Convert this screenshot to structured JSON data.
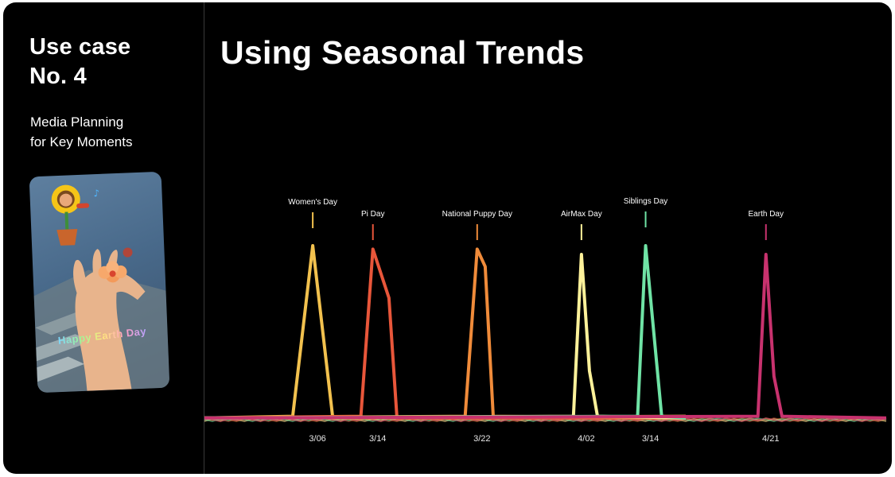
{
  "sidebar": {
    "heading_line1": "Use case",
    "heading_line2": "No. 4",
    "subtitle_line1": "Media Planning",
    "subtitle_line2": "for Key Moments",
    "phone_sticker_text": "Happy Earth Day"
  },
  "main": {
    "title": "Using Seasonal Trends"
  },
  "chart_data": {
    "type": "line",
    "x_tick_labels": [
      "3/06",
      "3/14",
      "3/22",
      "4/02",
      "3/14",
      "4/21"
    ],
    "ylim": [
      0,
      100
    ],
    "grid": false,
    "legend": "none",
    "annotations": [
      {
        "label": "Women's Day",
        "color": "#f2c14e"
      },
      {
        "label": "Pi Day",
        "color": "#e8563a"
      },
      {
        "label": "National Puppy Day",
        "color": "#f08b3a"
      },
      {
        "label": "AirMax Day",
        "color": "#fdf19a"
      },
      {
        "label": "Siblings Day",
        "color": "#6fe3a5"
      },
      {
        "label": "Earth Day",
        "color": "#c8326e"
      }
    ],
    "series": [
      {
        "color": "#f2c14e",
        "peak_x": 13.5,
        "values": [
          [
            0,
            1
          ],
          [
            11,
            2
          ],
          [
            13.5,
            100
          ],
          [
            16,
            1
          ],
          [
            60,
            2
          ]
        ]
      },
      {
        "color": "#e8563a",
        "peak_x": 21,
        "values": [
          [
            0,
            1
          ],
          [
            19.5,
            2
          ],
          [
            21,
            98
          ],
          [
            23,
            70
          ],
          [
            24,
            1
          ],
          [
            60,
            1
          ]
        ]
      },
      {
        "color": "#f08b3a",
        "peak_x": 34,
        "values": [
          [
            0,
            1
          ],
          [
            32.5,
            2
          ],
          [
            34,
            98
          ],
          [
            35,
            88
          ],
          [
            36,
            2
          ],
          [
            60,
            1
          ]
        ]
      },
      {
        "color": "#fdf19a",
        "peak_x": 47,
        "values": [
          [
            0,
            1
          ],
          [
            46,
            2
          ],
          [
            47,
            95
          ],
          [
            48,
            28
          ],
          [
            49,
            2
          ],
          [
            60,
            1
          ]
        ]
      },
      {
        "color": "#6fe3a5",
        "peak_x": 55,
        "values": [
          [
            0,
            1
          ],
          [
            54,
            2
          ],
          [
            55,
            100
          ],
          [
            57,
            2
          ],
          [
            60,
            1
          ]
        ]
      },
      {
        "color": "#c8326e",
        "peak_x": 70,
        "values": [
          [
            0,
            1
          ],
          [
            69,
            2
          ],
          [
            70,
            95
          ],
          [
            71,
            25
          ],
          [
            72,
            2
          ],
          [
            85,
            1
          ]
        ]
      }
    ],
    "colors": {
      "background": "#000000",
      "text": "#ffffff",
      "tick_text": "#e6e6e6"
    }
  }
}
